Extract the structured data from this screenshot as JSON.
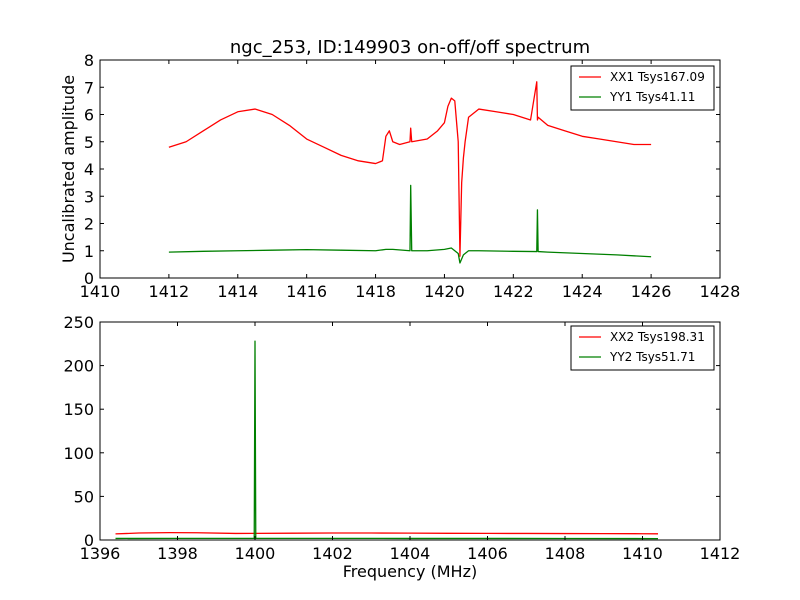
{
  "title": "ngc_253, ID:149903 on-off/off spectrum",
  "chart_data": [
    {
      "type": "line",
      "ylabel": "Uncalibrated amplitude",
      "xlabel": "",
      "xlim": [
        1410,
        1428
      ],
      "ylim": [
        0,
        8
      ],
      "xticks": [
        1410,
        1412,
        1414,
        1416,
        1418,
        1420,
        1422,
        1424,
        1426,
        1428
      ],
      "yticks": [
        0,
        1,
        2,
        3,
        4,
        5,
        6,
        7,
        8
      ],
      "legend_position": "top-right",
      "series": [
        {
          "name": "XX1 Tsys167.09",
          "color": "#ff0000",
          "x": [
            1412.0,
            1412.5,
            1413.0,
            1413.5,
            1414.0,
            1414.5,
            1415.0,
            1415.5,
            1416.0,
            1416.5,
            1417.0,
            1417.5,
            1418.0,
            1418.2,
            1418.3,
            1418.4,
            1418.5,
            1418.7,
            1419.0,
            1419.02,
            1419.05,
            1419.5,
            1419.8,
            1420.0,
            1420.1,
            1420.2,
            1420.3,
            1420.4,
            1420.45,
            1420.5,
            1420.55,
            1420.6,
            1420.7,
            1421.0,
            1421.5,
            1422.0,
            1422.5,
            1422.68,
            1422.7,
            1422.72,
            1423.0,
            1423.5,
            1424.0,
            1424.5,
            1425.0,
            1425.5,
            1426.0
          ],
          "y": [
            4.8,
            5.0,
            5.4,
            5.8,
            6.1,
            6.2,
            6.0,
            5.6,
            5.1,
            4.8,
            4.5,
            4.3,
            4.2,
            4.3,
            5.2,
            5.4,
            5.0,
            4.9,
            5.0,
            5.5,
            5.0,
            5.1,
            5.4,
            5.7,
            6.3,
            6.6,
            6.5,
            5.0,
            0.8,
            3.5,
            4.4,
            5.0,
            5.9,
            6.2,
            6.1,
            6.0,
            5.8,
            7.2,
            5.8,
            5.9,
            5.6,
            5.4,
            5.2,
            5.1,
            5.0,
            4.9,
            4.9
          ]
        },
        {
          "name": "YY1 Tsys41.11",
          "color": "#008000",
          "x": [
            1412.0,
            1413.0,
            1414.0,
            1415.0,
            1416.0,
            1417.0,
            1418.0,
            1418.3,
            1418.5,
            1419.0,
            1419.02,
            1419.05,
            1419.5,
            1420.0,
            1420.2,
            1420.4,
            1420.45,
            1420.55,
            1420.7,
            1421.0,
            1422.0,
            1422.68,
            1422.7,
            1422.72,
            1423.0,
            1424.0,
            1425.0,
            1426.0
          ],
          "y": [
            0.95,
            0.98,
            1.0,
            1.02,
            1.04,
            1.02,
            1.0,
            1.05,
            1.05,
            1.0,
            3.4,
            1.0,
            1.0,
            1.05,
            1.1,
            0.9,
            0.55,
            0.85,
            1.0,
            1.0,
            0.98,
            0.97,
            2.5,
            0.97,
            0.95,
            0.9,
            0.85,
            0.78
          ]
        }
      ]
    },
    {
      "type": "line",
      "ylabel": "",
      "xlabel": "Frequency (MHz)",
      "xlim": [
        1396,
        1412
      ],
      "ylim": [
        0,
        250
      ],
      "xticks": [
        1396,
        1398,
        1400,
        1402,
        1404,
        1406,
        1408,
        1410,
        1412
      ],
      "yticks": [
        0,
        50,
        100,
        150,
        200,
        250
      ],
      "legend_position": "top-right",
      "series": [
        {
          "name": "XX2 Tsys198.31",
          "color": "#ff0000",
          "x": [
            1396.4,
            1397.0,
            1397.8,
            1398.5,
            1399.5,
            1400.0,
            1401.0,
            1402.0,
            1403.0,
            1404.0,
            1405.0,
            1406.0,
            1407.0,
            1408.0,
            1409.0,
            1410.0,
            1410.4
          ],
          "y": [
            7.0,
            8.0,
            8.5,
            8.3,
            7.5,
            7.6,
            7.8,
            8.0,
            8.0,
            7.9,
            7.7,
            7.6,
            7.5,
            7.4,
            7.3,
            7.2,
            7.1
          ]
        },
        {
          "name": "YY2 Tsys51.71",
          "color": "#008000",
          "x": [
            1396.4,
            1398.0,
            1399.98,
            1400.0,
            1400.02,
            1402.0,
            1404.0,
            1406.0,
            1408.0,
            1410.4
          ],
          "y": [
            1.8,
            1.9,
            1.9,
            228.0,
            1.9,
            1.9,
            1.8,
            1.8,
            1.7,
            1.6
          ]
        }
      ]
    }
  ]
}
